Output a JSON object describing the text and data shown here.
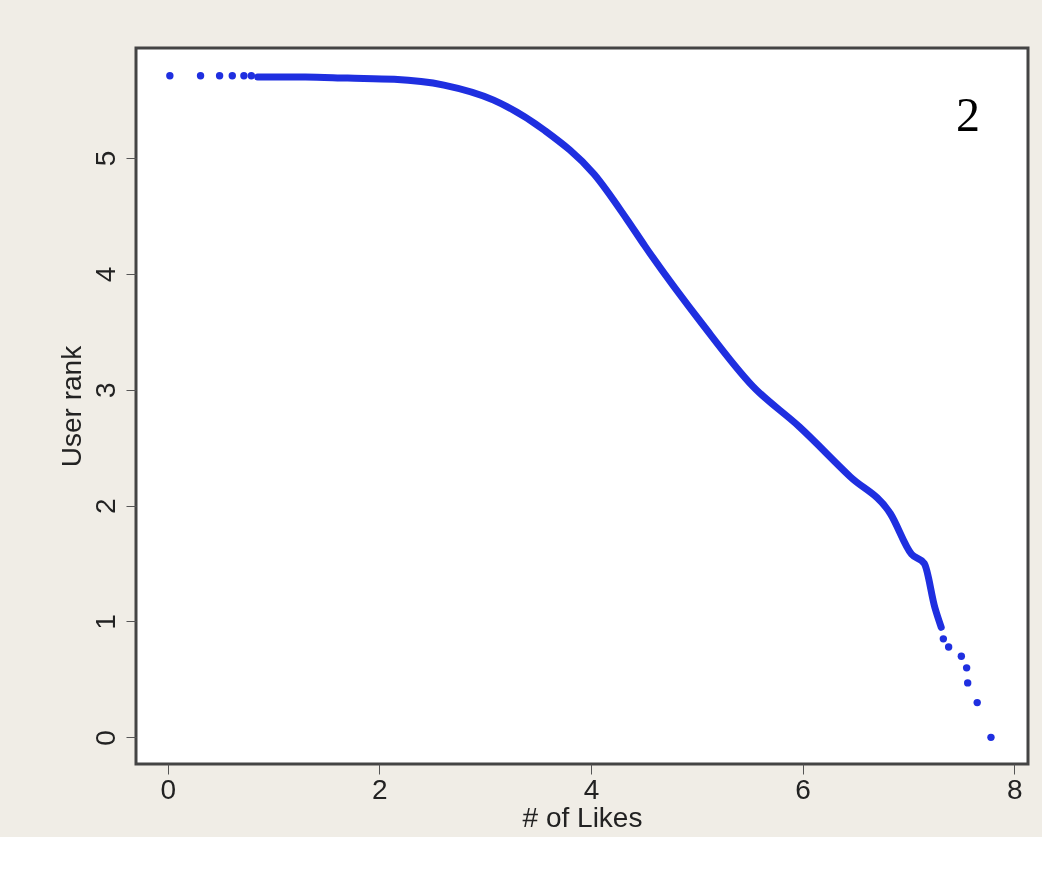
{
  "chart_data": {
    "type": "scatter",
    "xlabel": "# of Likes",
    "ylabel": "User rank",
    "annotations": [
      "2"
    ],
    "xlim": [
      -0.3,
      8.13
    ],
    "xticks": [
      0,
      2,
      4,
      6,
      8
    ],
    "ylim": [
      -0.23,
      5.95
    ],
    "yticks": [
      0,
      1,
      2,
      3,
      4,
      5
    ],
    "grid": false,
    "series": [
      {
        "type": "line",
        "color": "#1f2fe0",
        "x": [
          0.85,
          1.3,
          1.7,
          2.14,
          2.61,
          3.08,
          3.56,
          4.03,
          4.34,
          4.51,
          5.05,
          5.53,
          5.97,
          6.45,
          6.83,
          7.03,
          7.15,
          7.25,
          7.31
        ],
        "values": [
          5.7,
          5.7,
          5.69,
          5.68,
          5.63,
          5.5,
          5.24,
          4.86,
          4.47,
          4.24,
          3.57,
          3.03,
          2.68,
          2.25,
          1.93,
          1.58,
          1.5,
          1.12,
          0.95
        ]
      },
      {
        "marker": "circle",
        "color": "#1f2fe0",
        "x": [
          0.02,
          0.31,
          0.49,
          0.61,
          0.72,
          0.79,
          7.33,
          7.38,
          7.5,
          7.55,
          7.56,
          7.65,
          7.78
        ],
        "values": [
          5.71,
          5.71,
          5.71,
          5.71,
          5.71,
          5.71,
          0.85,
          0.78,
          0.7,
          0.6,
          0.47,
          0.3,
          0.0
        ]
      }
    ]
  }
}
